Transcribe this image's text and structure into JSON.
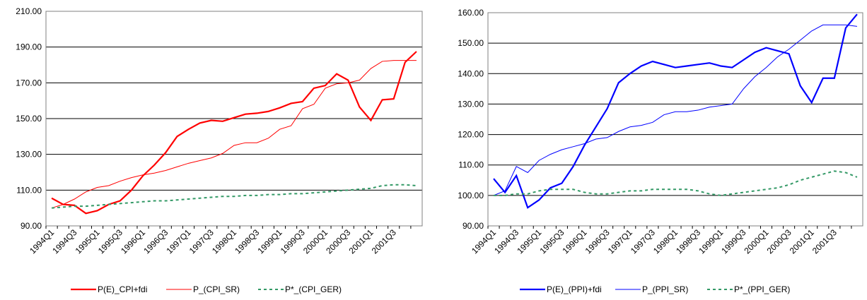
{
  "chart_data": [
    {
      "type": "line",
      "categories": [
        "1994Q1",
        null,
        "1994Q3",
        null,
        "1995Q1",
        null,
        "1995Q3",
        null,
        "1996Q1",
        null,
        "1996Q3",
        null,
        "1997Q1",
        null,
        "1997Q3",
        null,
        "1998Q1",
        null,
        "1998Q3",
        null,
        "1999Q1",
        null,
        "1999Q3",
        null,
        "2000Q1",
        null,
        "2000Q3",
        null,
        "2001Q1",
        null,
        "2001Q3",
        null,
        null
      ],
      "ylim": [
        90,
        210
      ],
      "yticks": [
        {
          "value": 90,
          "label": "90.00"
        },
        {
          "value": 110,
          "label": "110.00"
        },
        {
          "value": 130,
          "label": "130.00"
        },
        {
          "value": 150,
          "label": "150.00"
        },
        {
          "value": 170,
          "label": "170.00"
        },
        {
          "value": 190,
          "label": "190.00"
        },
        {
          "value": 210,
          "label": "210.00"
        }
      ],
      "grid": true,
      "series": [
        {
          "name": "P(E)_CPI+fdi",
          "color": "#ff0000",
          "style": "thick",
          "values": [
            105.5,
            102,
            101.5,
            97,
            98.5,
            102,
            104,
            110,
            118,
            124,
            131,
            140,
            144,
            147.5,
            149,
            148.5,
            150.5,
            152.5,
            153,
            154,
            156,
            158.5,
            159.5,
            167,
            168.5,
            175,
            171.5,
            156.5,
            149,
            160.5,
            161,
            181.5,
            187.5
          ]
        },
        {
          "name": "P_(CPI_SR)",
          "color": "#ff0000",
          "style": "thin",
          "values": [
            100,
            102,
            105,
            109,
            111.5,
            112.5,
            115,
            117,
            118.5,
            119.5,
            121,
            123,
            125,
            126.5,
            128,
            130.5,
            135,
            136.5,
            136.5,
            139,
            144,
            146,
            155.5,
            158,
            167,
            169.5,
            170,
            171.5,
            178,
            182,
            182.5,
            182.5,
            182.5
          ]
        },
        {
          "name": "P*_(CPI_GER)",
          "color": "#339966",
          "style": "dashed",
          "values": [
            100,
            100.5,
            101,
            101,
            101.5,
            102,
            102.5,
            103,
            103.5,
            104,
            104,
            104.5,
            105,
            105.5,
            106,
            106.5,
            106.5,
            107,
            107,
            107.5,
            107.5,
            108,
            108,
            108.5,
            109,
            109.5,
            110,
            110.5,
            111,
            112.5,
            113,
            113,
            112.5
          ]
        }
      ]
    },
    {
      "type": "line",
      "categories": [
        "1994Q1",
        null,
        "1994Q3",
        null,
        "1995Q1",
        null,
        "1995Q3",
        null,
        "1996Q1",
        null,
        "1996Q3",
        null,
        "1997Q1",
        null,
        "1997Q3",
        null,
        "1998Q1",
        null,
        "1998Q3",
        null,
        "1999Q1",
        null,
        "1999Q3",
        null,
        "2000Q1",
        null,
        "2000Q3",
        null,
        "2001Q1",
        null,
        "2001Q3",
        null,
        null
      ],
      "ylim": [
        90,
        160
      ],
      "yticks": [
        {
          "value": 90,
          "label": "90.00"
        },
        {
          "value": 100,
          "label": "100.00"
        },
        {
          "value": 110,
          "label": "110.00"
        },
        {
          "value": 120,
          "label": "120.00"
        },
        {
          "value": 130,
          "label": "130.00"
        },
        {
          "value": 140,
          "label": "140.00"
        },
        {
          "value": 150,
          "label": "150.00"
        },
        {
          "value": 160,
          "label": "160.00"
        }
      ],
      "grid": true,
      "series": [
        {
          "name": "P(E)_(PPI)+fdi",
          "color": "#0000ff",
          "style": "thick",
          "values": [
            105.5,
            101,
            106.5,
            96,
            98.5,
            102.5,
            104,
            109.5,
            116.5,
            122.5,
            128.5,
            137,
            140,
            142.5,
            144,
            143,
            142,
            142.5,
            143,
            143.5,
            142.5,
            142,
            144.5,
            147,
            148.5,
            147.5,
            146.5,
            136,
            130.5,
            138.5,
            138.5,
            155,
            159.5
          ]
        },
        {
          "name": "P_(PPI_SR)",
          "color": "#0000ff",
          "style": "thin",
          "values": [
            100,
            101.5,
            109.5,
            107.5,
            111.5,
            113.5,
            115,
            116,
            117,
            118.5,
            119,
            121,
            122.5,
            123,
            124,
            126.5,
            127.5,
            127.5,
            128,
            129,
            129.5,
            130,
            135,
            139,
            142,
            145.5,
            148,
            151,
            154,
            156,
            156,
            156,
            155.5
          ]
        },
        {
          "name": "P*_(PPI_GER)",
          "color": "#339966",
          "style": "dashed",
          "values": [
            100,
            100,
            100.5,
            100.5,
            101.5,
            102,
            102,
            102,
            101,
            100.5,
            100.5,
            101,
            101.5,
            101.5,
            102,
            102,
            102,
            102,
            101.5,
            100.5,
            100,
            100.5,
            101,
            101.5,
            102,
            102.5,
            103.5,
            105,
            106,
            107,
            108,
            107.5,
            106
          ]
        }
      ]
    }
  ]
}
